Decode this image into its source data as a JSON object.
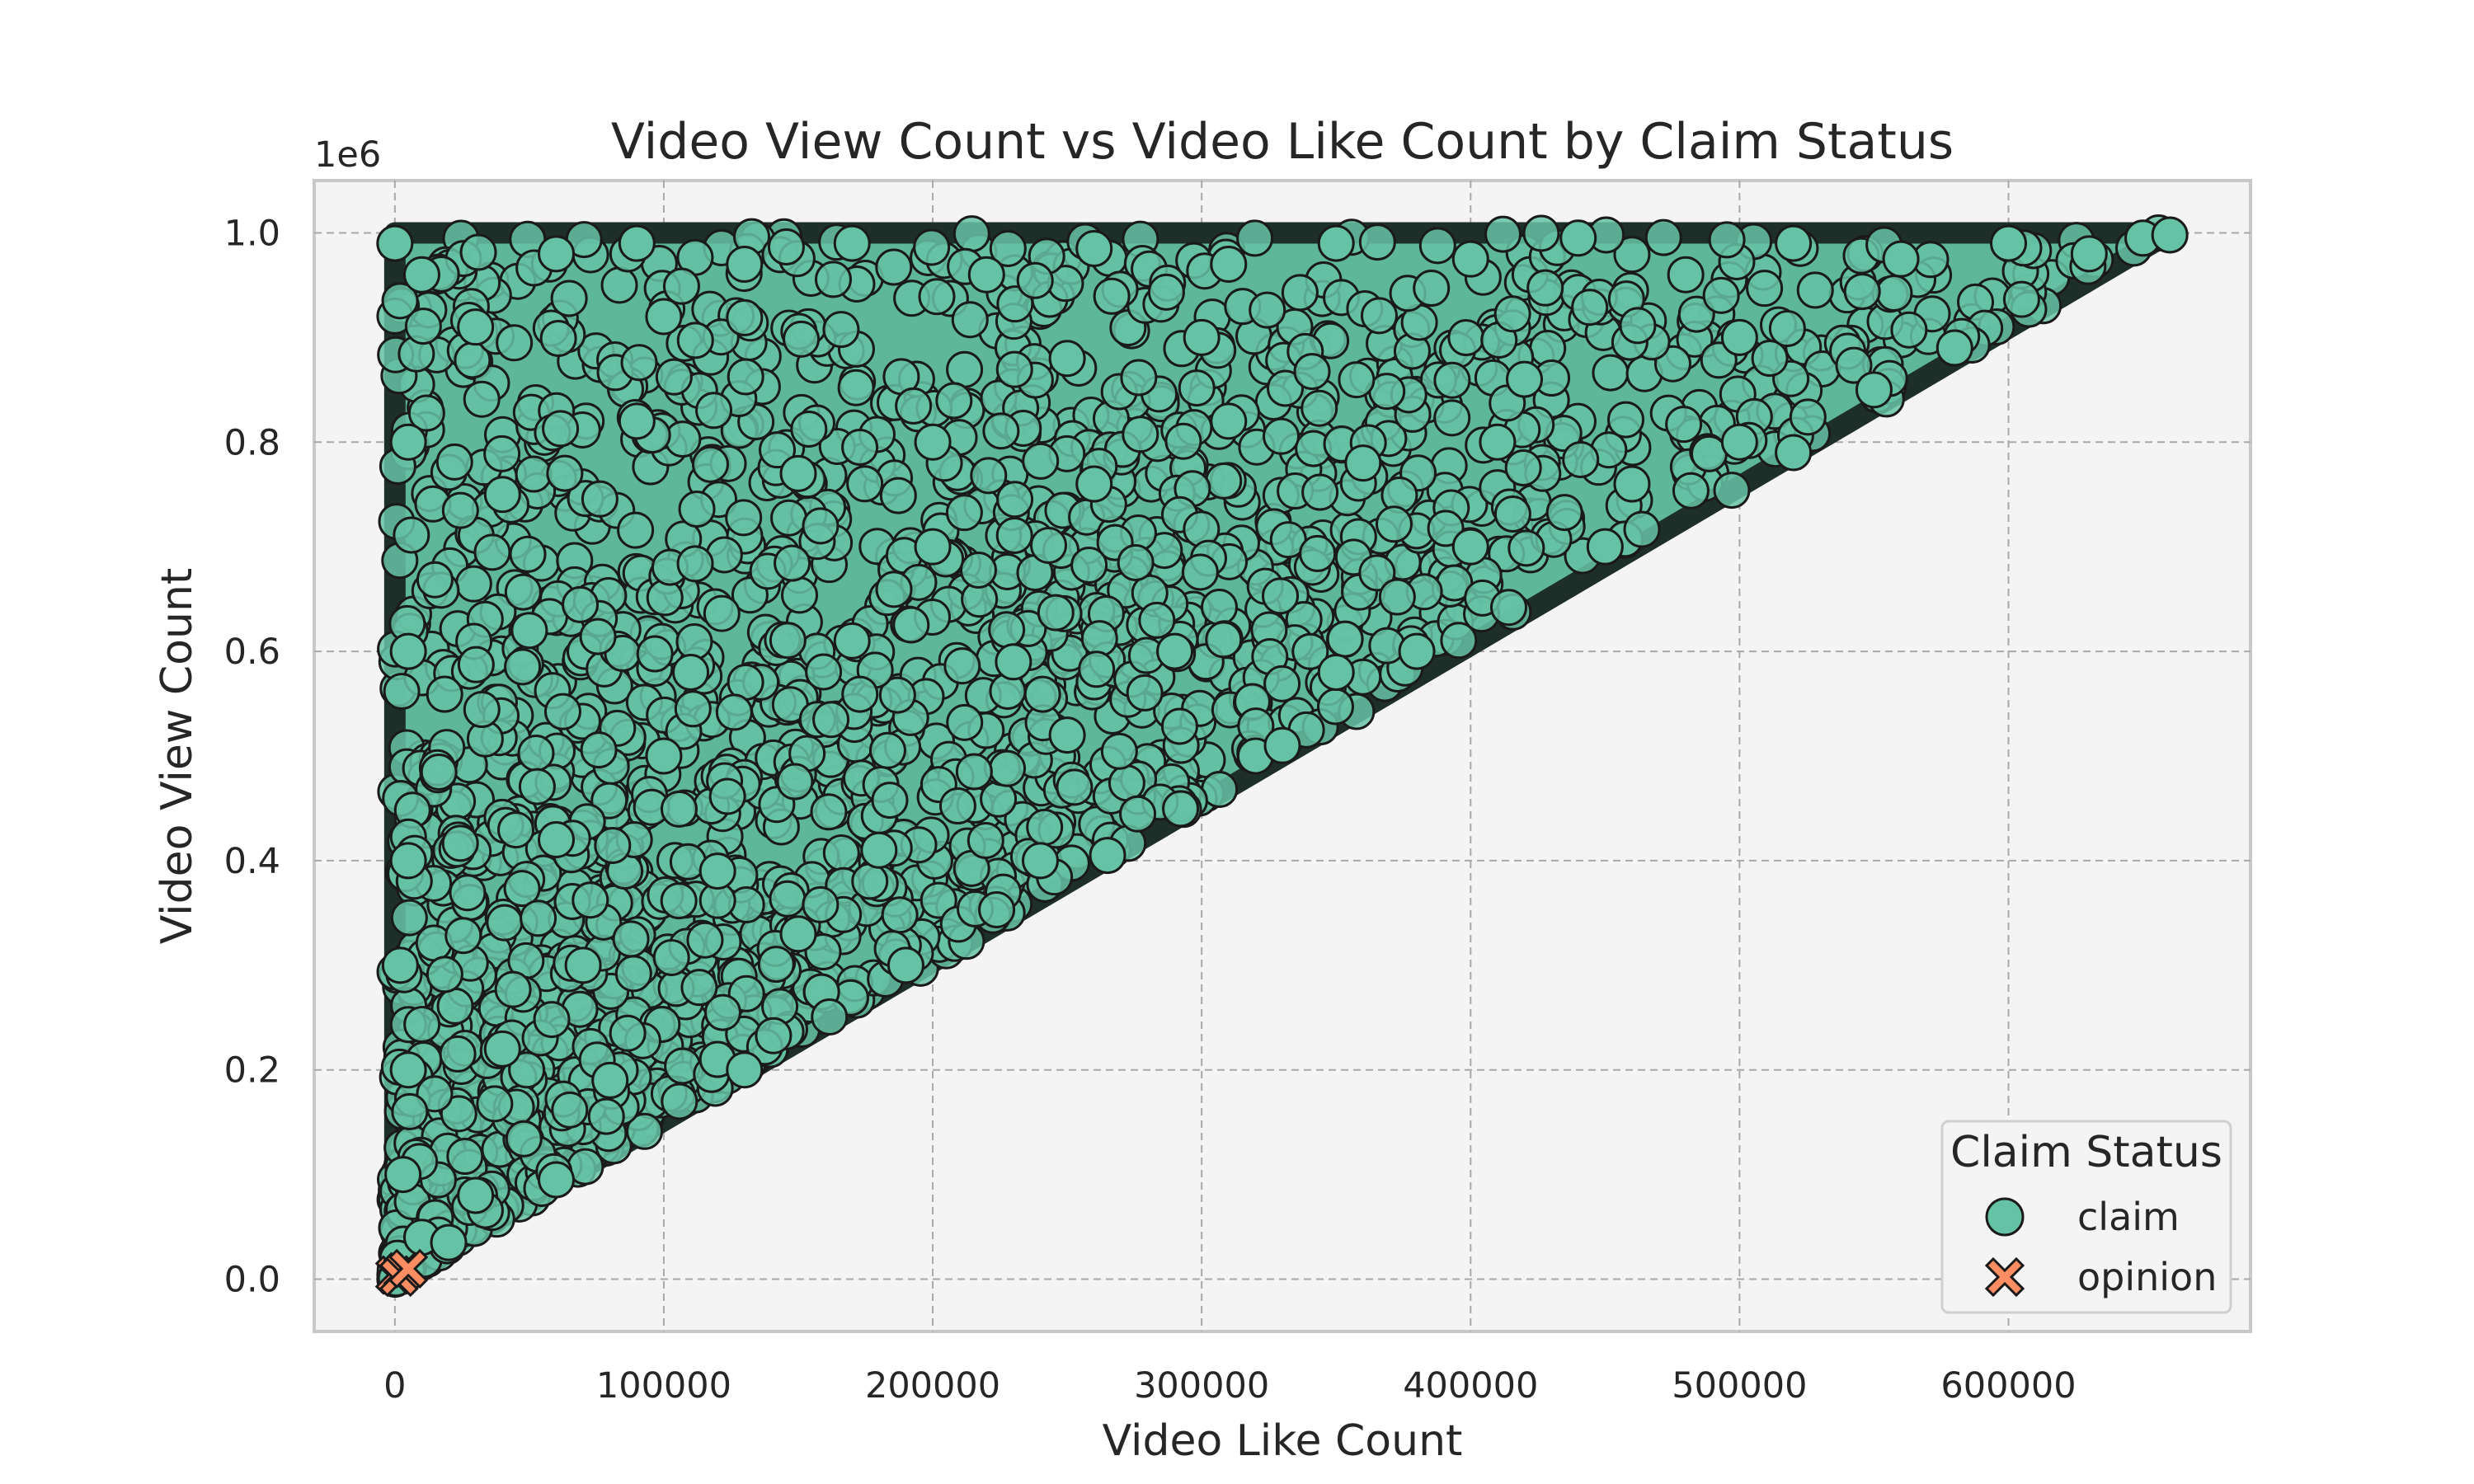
{
  "chart_data": {
    "type": "scatter",
    "title": "Video View Count vs Video Like Count by Claim Status",
    "xlabel": "Video Like Count",
    "ylabel": "Video View Count",
    "y_offset_label": "1e6",
    "xlim": [
      -30000,
      690000
    ],
    "ylim": [
      -50000,
      1050000
    ],
    "x_ticks": [
      0,
      100000,
      200000,
      300000,
      400000,
      500000,
      600000
    ],
    "x_tick_labels": [
      "0",
      "100000",
      "200000",
      "300000",
      "400000",
      "500000",
      "600000"
    ],
    "y_ticks": [
      0,
      200000,
      400000,
      600000,
      800000,
      1000000
    ],
    "y_tick_labels": [
      "0.0",
      "0.2",
      "0.4",
      "0.6",
      "0.8",
      "1.0"
    ],
    "grid": true,
    "legend": {
      "title": "Claim Status",
      "placement": "lower-right",
      "entries": [
        {
          "label": "claim",
          "color": "#66c2a5",
          "marker": "circle"
        },
        {
          "label": "opinion",
          "color": "#fc8d62",
          "marker": "x"
        }
      ]
    },
    "series": [
      {
        "name": "claim",
        "color": "#66c2a5",
        "marker": "circle",
        "region": "filled triangle between (0,0), (0,1000000) and (660000,1000000); like count never exceeds roughly 0.66 x view count",
        "points": [
          [
            0,
            990000
          ],
          [
            10000,
            960000
          ],
          [
            30000,
            910000
          ],
          [
            60000,
            980000
          ],
          [
            90000,
            990000
          ],
          [
            130000,
            970000
          ],
          [
            170000,
            990000
          ],
          [
            220000,
            960000
          ],
          [
            260000,
            985000
          ],
          [
            310000,
            970000
          ],
          [
            350000,
            990000
          ],
          [
            400000,
            975000
          ],
          [
            440000,
            995000
          ],
          [
            480000,
            960000
          ],
          [
            520000,
            990000
          ],
          [
            560000,
            975000
          ],
          [
            600000,
            990000
          ],
          [
            630000,
            980000
          ],
          [
            650000,
            995000
          ],
          [
            660000,
            998000
          ],
          [
            5000,
            800000
          ],
          [
            40000,
            750000
          ],
          [
            90000,
            820000
          ],
          [
            150000,
            770000
          ],
          [
            200000,
            800000
          ],
          [
            260000,
            760000
          ],
          [
            310000,
            820000
          ],
          [
            360000,
            780000
          ],
          [
            410000,
            800000
          ],
          [
            460000,
            760000
          ],
          [
            500000,
            800000
          ],
          [
            520000,
            790000
          ],
          [
            5000,
            600000
          ],
          [
            50000,
            620000
          ],
          [
            110000,
            580000
          ],
          [
            170000,
            610000
          ],
          [
            230000,
            590000
          ],
          [
            290000,
            600000
          ],
          [
            350000,
            580000
          ],
          [
            380000,
            600000
          ],
          [
            5000,
            400000
          ],
          [
            60000,
            420000
          ],
          [
            120000,
            390000
          ],
          [
            180000,
            410000
          ],
          [
            240000,
            400000
          ],
          [
            265000,
            405000
          ],
          [
            5000,
            200000
          ],
          [
            40000,
            220000
          ],
          [
            80000,
            190000
          ],
          [
            120000,
            210000
          ],
          [
            130000,
            200000
          ],
          [
            3000,
            100000
          ],
          [
            30000,
            80000
          ],
          [
            60000,
            95000
          ],
          [
            1000,
            20000
          ],
          [
            10000,
            40000
          ],
          [
            20000,
            35000
          ],
          [
            2000,
            300000
          ],
          [
            70000,
            300000
          ],
          [
            150000,
            330000
          ],
          [
            190000,
            300000
          ],
          [
            100000,
            500000
          ],
          [
            250000,
            520000
          ],
          [
            320000,
            500000
          ],
          [
            330000,
            510000
          ],
          [
            200000,
            700000
          ],
          [
            400000,
            700000
          ],
          [
            450000,
            700000
          ],
          [
            300000,
            900000
          ],
          [
            500000,
            900000
          ],
          [
            580000,
            890000
          ],
          [
            250000,
            880000
          ],
          [
            100000,
            920000
          ],
          [
            420000,
            860000
          ],
          [
            550000,
            850000
          ]
        ]
      },
      {
        "name": "opinion",
        "color": "#fc8d62",
        "marker": "x",
        "points": [
          [
            0,
            4000
          ],
          [
            3000,
            7000
          ],
          [
            1500,
            2000
          ],
          [
            5000,
            10000
          ]
        ]
      }
    ]
  }
}
